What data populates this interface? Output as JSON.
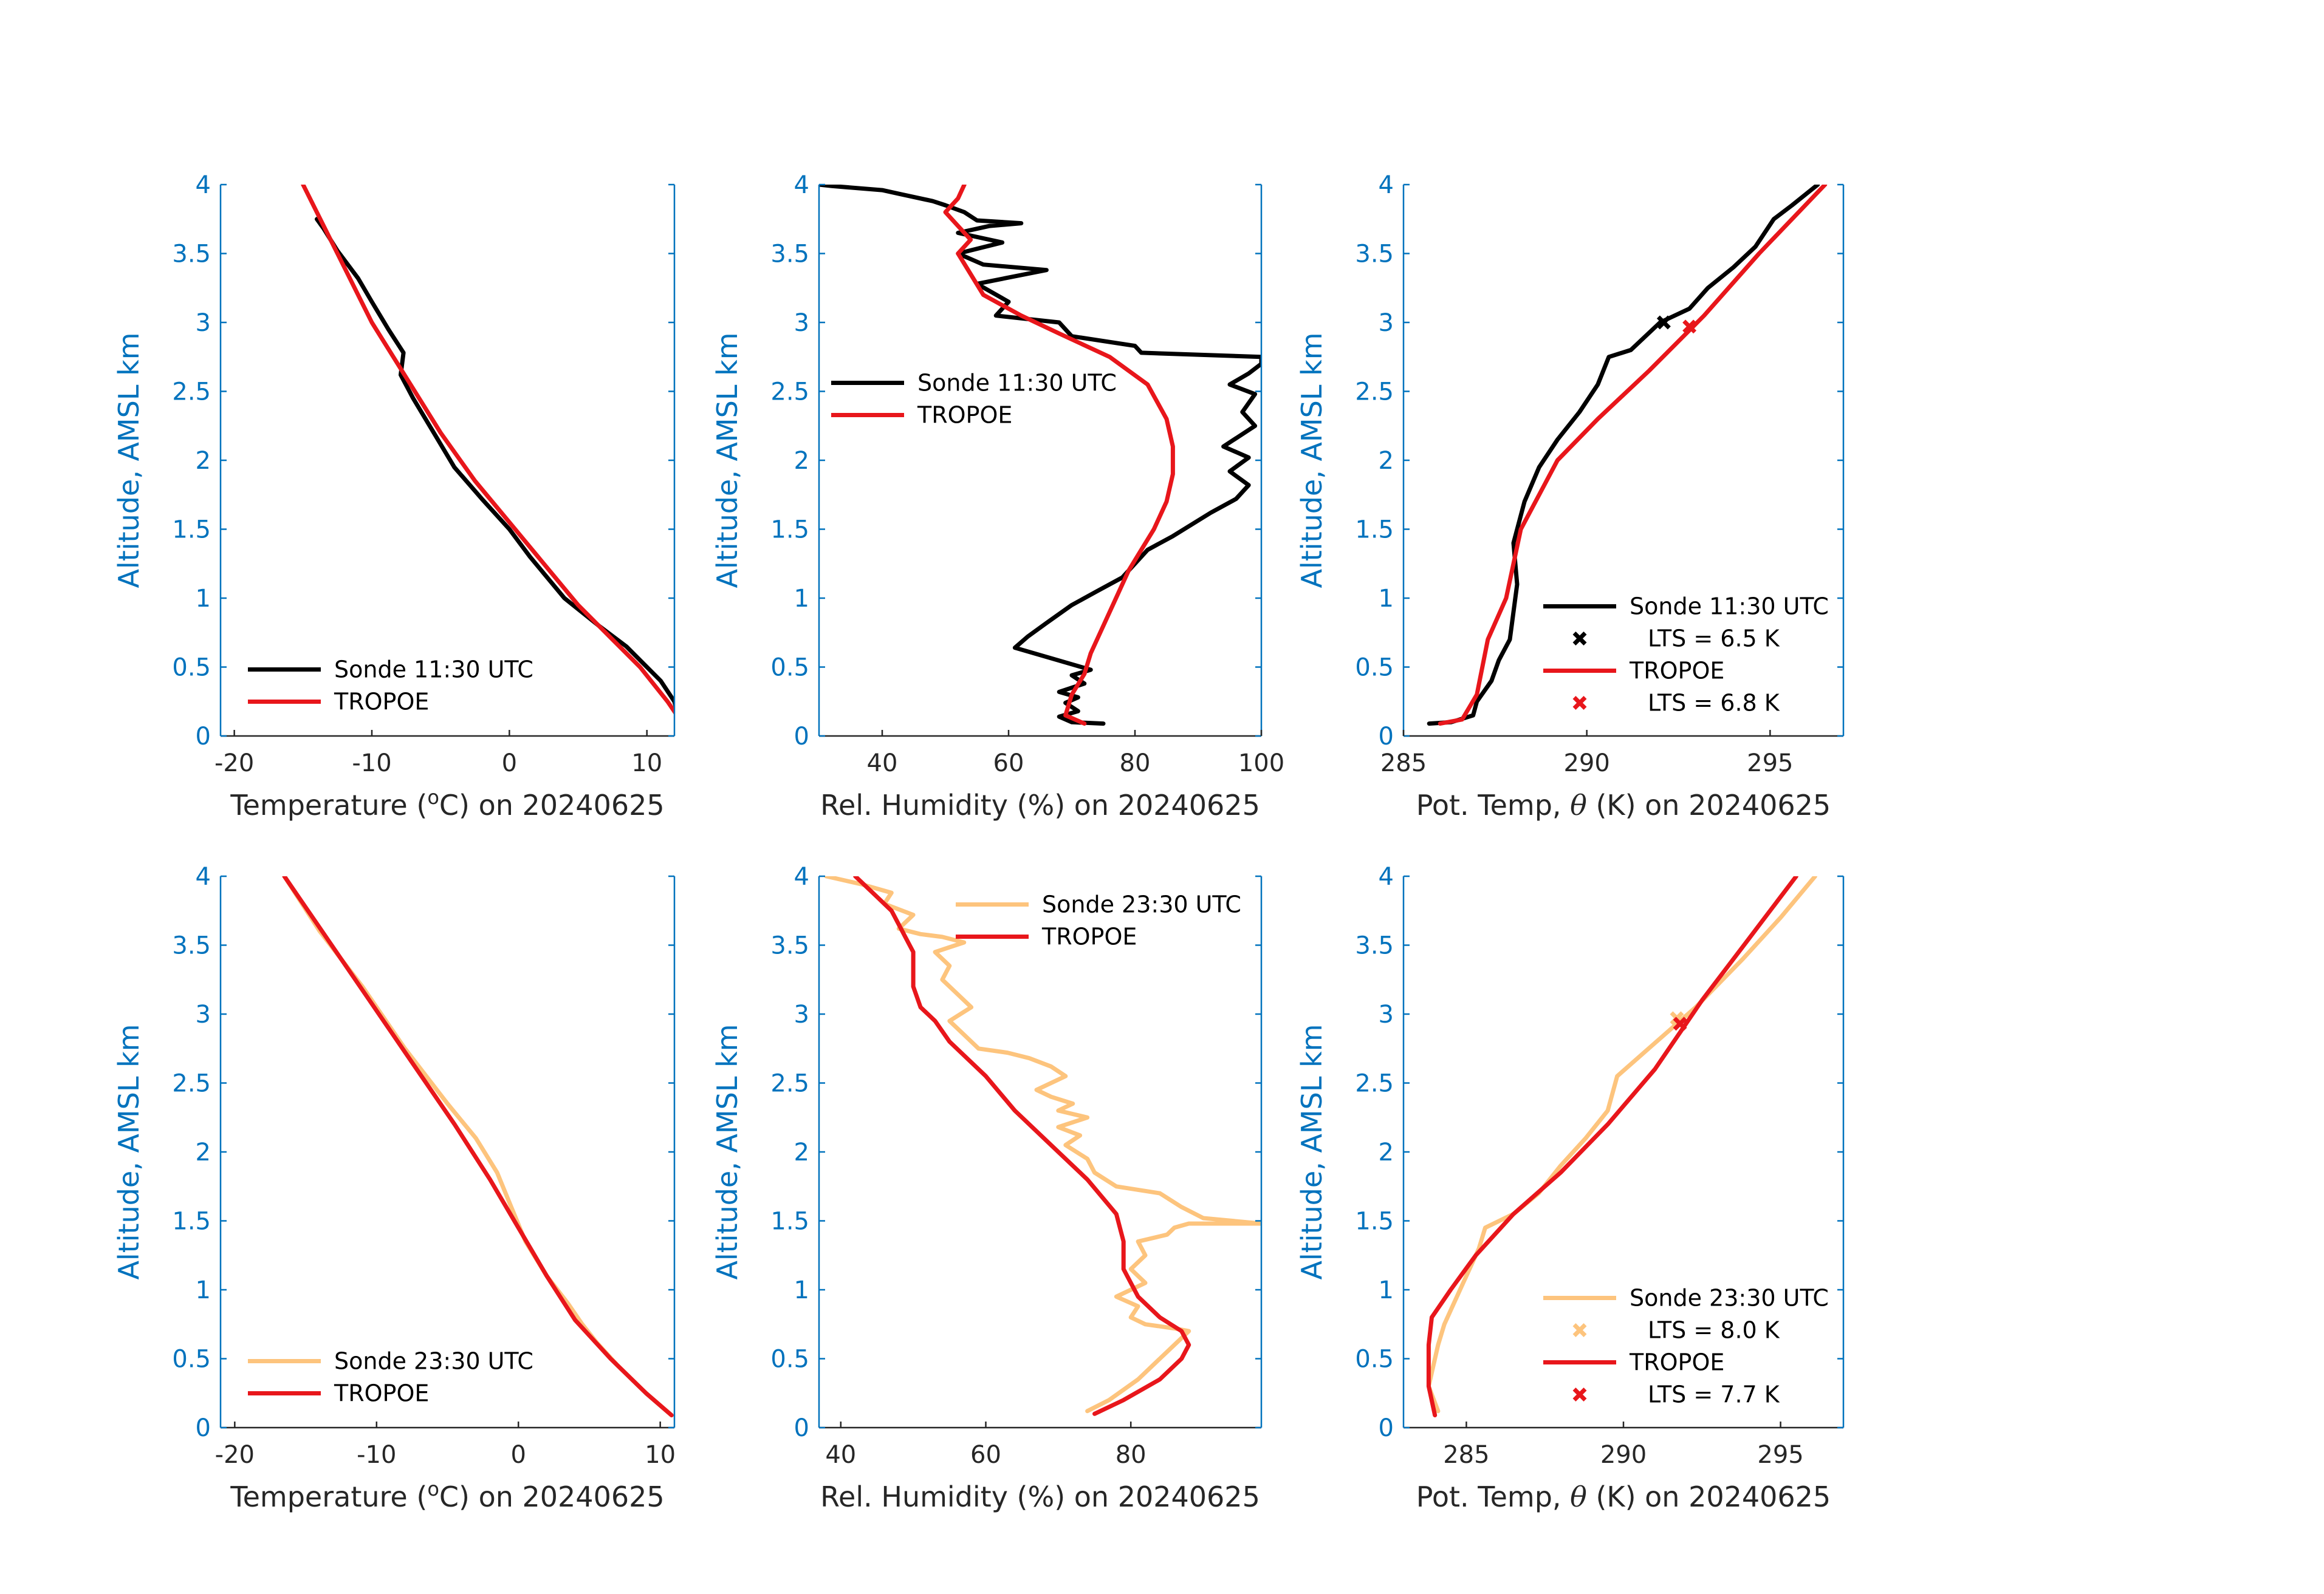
{
  "colors": {
    "sonde_day": "#000000",
    "sonde_night": "#FDC47D",
    "tropoe": "#E8161B",
    "axis_y": "#0072BD",
    "axis_x": "#262626"
  },
  "chart_data": [
    {
      "type": "line",
      "xlabel_pre": "Temperature (",
      "xlabel_sup": "o",
      "xlabel_post": "C) on 20240625",
      "ylabel": "Altitude, AMSL km",
      "xlim": [
        -21,
        12
      ],
      "ylim": [
        0,
        4
      ],
      "xticks": [
        -20,
        -10,
        0,
        10
      ],
      "xtick_labels": [
        "-20",
        "-10",
        "0",
        "10"
      ],
      "yticks": [
        0,
        0.5,
        1,
        1.5,
        2,
        2.5,
        3,
        3.5,
        4
      ],
      "ytick_labels": [
        "0",
        "0.5",
        "1",
        "1.5",
        "2",
        "2.5",
        "3",
        "3.5",
        "4"
      ],
      "legend": {
        "placement": "bottom-left",
        "entries": [
          {
            "label": "Sonde 11:30 UTC",
            "kind": "line",
            "color": "#000000"
          },
          {
            "label": "TROPOE",
            "kind": "line",
            "color": "#E8161B"
          }
        ]
      },
      "series": [
        {
          "name": "Sonde 11:30 UTC",
          "color": "#000000",
          "x": [
            12.4,
            12.0,
            11.0,
            10.0,
            8.5,
            6.5,
            4.0,
            1.5,
            0.0,
            -2.0,
            -4.0,
            -5.5,
            -7.0,
            -7.9,
            -7.7,
            -8.8,
            -10.0,
            -11.0,
            -12.5,
            -13.5,
            -14.0
          ],
          "y": [
            0.09,
            0.25,
            0.4,
            0.5,
            0.65,
            0.8,
            1.0,
            1.3,
            1.5,
            1.72,
            1.95,
            2.2,
            2.45,
            2.62,
            2.78,
            2.95,
            3.15,
            3.32,
            3.52,
            3.68,
            3.75
          ]
        },
        {
          "name": "TROPOE",
          "color": "#E8161B",
          "x": [
            12.6,
            11.5,
            9.5,
            7.5,
            5.0,
            2.5,
            0.0,
            -2.5,
            -5.0,
            -7.5,
            -10.0,
            -12.5,
            -15.0
          ],
          "y": [
            0.09,
            0.25,
            0.5,
            0.7,
            0.95,
            1.25,
            1.55,
            1.85,
            2.2,
            2.6,
            3.0,
            3.5,
            4.0
          ]
        }
      ]
    },
    {
      "type": "line",
      "xlabel": "Rel. Humidity (%) on 20240625",
      "ylabel": "Altitude, AMSL km",
      "xlim": [
        30,
        100
      ],
      "ylim": [
        0,
        4
      ],
      "xticks": [
        40,
        60,
        80,
        100
      ],
      "xtick_labels": [
        "40",
        "60",
        "80",
        "100"
      ],
      "yticks": [
        0,
        0.5,
        1,
        1.5,
        2,
        2.5,
        3,
        3.5,
        4
      ],
      "ytick_labels": [
        "0",
        "0.5",
        "1",
        "1.5",
        "2",
        "2.5",
        "3",
        "3.5",
        "4"
      ],
      "legend": {
        "placement": "middle-left",
        "entries": [
          {
            "label": "Sonde 11:30 UTC",
            "kind": "line",
            "color": "#000000"
          },
          {
            "label": "TROPOE",
            "kind": "line",
            "color": "#E8161B"
          }
        ]
      },
      "series": [
        {
          "name": "Sonde 11:30 UTC",
          "color": "#000000",
          "x": [
            75,
            70,
            68,
            71,
            69,
            71,
            68,
            72,
            70,
            73,
            61,
            63,
            66,
            70,
            74,
            78,
            80,
            82,
            86,
            92,
            96,
            98,
            95,
            98,
            94,
            99,
            97,
            99,
            95,
            98,
            100,
            100,
            81,
            80,
            70,
            68,
            58,
            60,
            55,
            66,
            56,
            52,
            59,
            52,
            57,
            62,
            55,
            53,
            50,
            48,
            43,
            40,
            32,
            30
          ],
          "y": [
            0.09,
            0.1,
            0.14,
            0.18,
            0.24,
            0.28,
            0.32,
            0.38,
            0.44,
            0.48,
            0.64,
            0.72,
            0.82,
            0.95,
            1.05,
            1.15,
            1.25,
            1.35,
            1.45,
            1.62,
            1.72,
            1.82,
            1.92,
            2.02,
            2.1,
            2.25,
            2.35,
            2.48,
            2.55,
            2.63,
            2.7,
            2.75,
            2.78,
            2.83,
            2.9,
            3.0,
            3.05,
            3.15,
            3.28,
            3.38,
            3.42,
            3.5,
            3.58,
            3.65,
            3.7,
            3.72,
            3.74,
            3.8,
            3.85,
            3.88,
            3.93,
            3.96,
            3.99,
            4.0
          ]
        },
        {
          "name": "TROPOE",
          "color": "#E8161B",
          "x": [
            72,
            69,
            70,
            72,
            73,
            75,
            77,
            79,
            81,
            83,
            85,
            86,
            86,
            85,
            82,
            76,
            68,
            62,
            56,
            54,
            52,
            54,
            52,
            50,
            52,
            53
          ],
          "y": [
            0.09,
            0.15,
            0.3,
            0.45,
            0.6,
            0.8,
            1.0,
            1.2,
            1.35,
            1.5,
            1.7,
            1.9,
            2.1,
            2.3,
            2.55,
            2.75,
            2.92,
            3.05,
            3.2,
            3.35,
            3.5,
            3.6,
            3.7,
            3.8,
            3.9,
            4.0
          ]
        }
      ]
    },
    {
      "type": "line",
      "xlabel_pre": "Pot. Temp, ",
      "xlabel_sym": "θ",
      "xlabel_post": " (K) on 20240625",
      "ylabel": "Altitude, AMSL km",
      "xlim": [
        285,
        297
      ],
      "ylim": [
        0,
        4
      ],
      "xticks": [
        285,
        290,
        295
      ],
      "xtick_labels": [
        "285",
        "290",
        "295"
      ],
      "yticks": [
        0,
        0.5,
        1,
        1.5,
        2,
        2.5,
        3,
        3.5,
        4
      ],
      "ytick_labels": [
        "0",
        "0.5",
        "1",
        "1.5",
        "2",
        "2.5",
        "3",
        "3.5",
        "4"
      ],
      "legend": {
        "placement": "bottom-right",
        "entries": [
          {
            "label": "Sonde 11:30 UTC",
            "kind": "line",
            "color": "#000000"
          },
          {
            "label": "LTS = 6.5 K",
            "kind": "marker",
            "color": "#000000"
          },
          {
            "label": "TROPOE",
            "kind": "line",
            "color": "#E8161B"
          },
          {
            "label": "LTS = 6.8 K",
            "kind": "marker",
            "color": "#E8161B"
          }
        ]
      },
      "markers": [
        {
          "x": 292.1,
          "y": 3.0,
          "color": "#000000"
        },
        {
          "x": 292.8,
          "y": 2.97,
          "color": "#E8161B"
        }
      ],
      "series": [
        {
          "name": "Sonde 11:30 UTC",
          "color": "#000000",
          "x": [
            285.7,
            286.3,
            286.9,
            287.0,
            287.4,
            287.6,
            287.9,
            288.0,
            288.1,
            288.0,
            288.3,
            288.7,
            289.2,
            289.8,
            290.3,
            290.6,
            291.2,
            292.0,
            292.8,
            293.3,
            294.0,
            294.6,
            295.1,
            295.6,
            296.3
          ],
          "y": [
            0.09,
            0.1,
            0.15,
            0.25,
            0.4,
            0.55,
            0.7,
            0.9,
            1.1,
            1.4,
            1.7,
            1.95,
            2.15,
            2.35,
            2.55,
            2.75,
            2.8,
            3.0,
            3.1,
            3.25,
            3.4,
            3.55,
            3.75,
            3.85,
            4.0
          ]
        },
        {
          "name": "TROPOE",
          "color": "#E8161B",
          "x": [
            286.0,
            286.6,
            287.0,
            287.3,
            287.8,
            288.2,
            289.2,
            290.3,
            291.7,
            293.2,
            294.7,
            296.5
          ],
          "y": [
            0.09,
            0.12,
            0.3,
            0.7,
            1.0,
            1.5,
            2.0,
            2.3,
            2.65,
            3.05,
            3.5,
            4.0
          ]
        }
      ]
    },
    {
      "type": "line",
      "xlabel_pre": "Temperature (",
      "xlabel_sup": "o",
      "xlabel_post": "C) on 20240625",
      "ylabel": "Altitude, AMSL km",
      "xlim": [
        -21,
        11
      ],
      "ylim": [
        0,
        4
      ],
      "xticks": [
        -20,
        -10,
        0,
        10
      ],
      "xtick_labels": [
        "-20",
        "-10",
        "0",
        "10"
      ],
      "yticks": [
        0,
        0.5,
        1,
        1.5,
        2,
        2.5,
        3,
        3.5,
        4
      ],
      "ytick_labels": [
        "0",
        "0.5",
        "1",
        "1.5",
        "2",
        "2.5",
        "3",
        "3.5",
        "4"
      ],
      "legend": {
        "placement": "bottom-left",
        "entries": [
          {
            "label": "Sonde 23:30 UTC",
            "kind": "line",
            "color": "#FDC47D"
          },
          {
            "label": "TROPOE",
            "kind": "line",
            "color": "#E8161B"
          }
        ]
      },
      "series": [
        {
          "name": "Sonde 23:30 UTC",
          "color": "#FDC47D",
          "x": [
            10.8,
            9.0,
            7.0,
            5.5,
            4.5,
            3.5,
            2.0,
            0.5,
            -0.5,
            -1.5,
            -3.0,
            -5.0,
            -8.0,
            -11.0,
            -14.0,
            -16.5
          ],
          "y": [
            0.09,
            0.25,
            0.45,
            0.62,
            0.75,
            0.9,
            1.1,
            1.35,
            1.6,
            1.85,
            2.1,
            2.35,
            2.75,
            3.2,
            3.6,
            4.0
          ]
        },
        {
          "name": "TROPOE",
          "color": "#E8161B",
          "x": [
            10.8,
            9.0,
            6.5,
            4.0,
            2.0,
            0.0,
            -2.0,
            -4.5,
            -7.5,
            -10.5,
            -13.5,
            -16.5
          ],
          "y": [
            0.09,
            0.25,
            0.5,
            0.78,
            1.1,
            1.45,
            1.8,
            2.2,
            2.65,
            3.1,
            3.55,
            4.0
          ]
        }
      ]
    },
    {
      "type": "line",
      "xlabel": "Rel. Humidity (%) on 20240625",
      "ylabel": "Altitude, AMSL km",
      "xlim": [
        37,
        98
      ],
      "ylim": [
        0,
        4
      ],
      "xticks": [
        40,
        60,
        80
      ],
      "xtick_labels": [
        "40",
        "60",
        "80"
      ],
      "yticks": [
        0,
        0.5,
        1,
        1.5,
        2,
        2.5,
        3,
        3.5,
        4
      ],
      "ytick_labels": [
        "0",
        "0.5",
        "1",
        "1.5",
        "2",
        "2.5",
        "3",
        "3.5",
        "4"
      ],
      "legend": {
        "placement": "top-right",
        "entries": [
          {
            "label": "Sonde 23:30 UTC",
            "kind": "line",
            "color": "#FDC47D"
          },
          {
            "label": "TROPOE",
            "kind": "line",
            "color": "#E8161B"
          }
        ]
      },
      "series": [
        {
          "name": "Sonde 23:30 UTC",
          "color": "#FDC47D",
          "x": [
            74,
            77,
            81,
            84,
            86,
            88,
            86,
            82,
            80,
            81,
            78,
            82,
            80,
            82,
            81,
            85,
            86,
            88,
            98,
            90,
            87,
            84,
            78,
            75,
            74,
            71,
            73,
            70,
            74,
            70,
            72,
            69,
            67,
            71,
            69,
            66,
            63,
            59,
            57,
            55,
            58,
            56,
            54,
            55,
            53,
            57,
            54,
            51,
            48,
            50,
            46,
            47,
            43,
            38
          ],
          "y": [
            0.12,
            0.2,
            0.35,
            0.5,
            0.6,
            0.7,
            0.72,
            0.75,
            0.8,
            0.88,
            0.95,
            1.05,
            1.15,
            1.25,
            1.35,
            1.4,
            1.45,
            1.48,
            1.48,
            1.52,
            1.6,
            1.7,
            1.75,
            1.85,
            1.95,
            2.05,
            2.12,
            2.18,
            2.25,
            2.3,
            2.35,
            2.4,
            2.45,
            2.55,
            2.62,
            2.68,
            2.72,
            2.75,
            2.85,
            2.95,
            3.05,
            3.15,
            3.25,
            3.35,
            3.45,
            3.52,
            3.56,
            3.58,
            3.62,
            3.72,
            3.8,
            3.88,
            3.94,
            4.0
          ]
        },
        {
          "name": "TROPOE",
          "color": "#E8161B",
          "x": [
            75,
            79,
            84,
            87,
            88,
            87,
            84,
            81,
            79,
            79,
            78,
            74,
            69,
            64,
            60,
            55,
            53,
            51,
            50,
            50,
            49,
            48,
            47,
            45,
            42
          ],
          "y": [
            0.1,
            0.2,
            0.35,
            0.5,
            0.6,
            0.7,
            0.8,
            0.95,
            1.15,
            1.35,
            1.55,
            1.8,
            2.05,
            2.3,
            2.55,
            2.8,
            2.95,
            3.05,
            3.2,
            3.45,
            3.55,
            3.65,
            3.75,
            3.85,
            4.0
          ]
        }
      ]
    },
    {
      "type": "line",
      "xlabel_pre": "Pot. Temp, ",
      "xlabel_sym": "θ",
      "xlabel_post": " (K) on 20240625",
      "ylabel": "Altitude, AMSL km",
      "xlim": [
        283,
        297
      ],
      "ylim": [
        0,
        4
      ],
      "xticks": [
        285,
        290,
        295
      ],
      "xtick_labels": [
        "285",
        "290",
        "295"
      ],
      "yticks": [
        0,
        0.5,
        1,
        1.5,
        2,
        2.5,
        3,
        3.5,
        4
      ],
      "ytick_labels": [
        "0",
        "0.5",
        "1",
        "1.5",
        "2",
        "2.5",
        "3",
        "3.5",
        "4"
      ],
      "legend": {
        "placement": "bottom-right",
        "entries": [
          {
            "label": "Sonde 23:30 UTC",
            "kind": "line",
            "color": "#FDC47D"
          },
          {
            "label": "LTS = 8.0 K",
            "kind": "marker",
            "color": "#FDC47D"
          },
          {
            "label": "TROPOE",
            "kind": "line",
            "color": "#E8161B"
          },
          {
            "label": "LTS = 7.7 K",
            "kind": "marker",
            "color": "#E8161B"
          }
        ]
      },
      "markers": [
        {
          "x": 291.7,
          "y": 2.97,
          "color": "#FDC47D"
        },
        {
          "x": 291.8,
          "y": 2.93,
          "color": "#E8161B"
        }
      ],
      "series": [
        {
          "name": "Sonde 23:30 UTC",
          "color": "#FDC47D",
          "x": [
            284.1,
            283.8,
            284.1,
            284.3,
            284.6,
            285.0,
            285.4,
            285.6,
            286.5,
            287.3,
            288.0,
            288.8,
            289.5,
            289.8,
            290.8,
            292.3,
            293.8,
            295.0,
            296.1
          ],
          "y": [
            0.12,
            0.3,
            0.6,
            0.75,
            0.9,
            1.1,
            1.3,
            1.45,
            1.55,
            1.7,
            1.9,
            2.1,
            2.3,
            2.55,
            2.75,
            3.05,
            3.4,
            3.7,
            4.0
          ]
        },
        {
          "name": "TROPOE",
          "color": "#E8161B",
          "x": [
            284.0,
            283.8,
            283.8,
            283.9,
            284.5,
            285.3,
            286.5,
            288.0,
            289.5,
            291.0,
            292.5,
            294.0,
            295.5
          ],
          "y": [
            0.09,
            0.3,
            0.6,
            0.8,
            1.0,
            1.25,
            1.55,
            1.85,
            2.2,
            2.6,
            3.1,
            3.55,
            4.0
          ]
        }
      ]
    }
  ]
}
